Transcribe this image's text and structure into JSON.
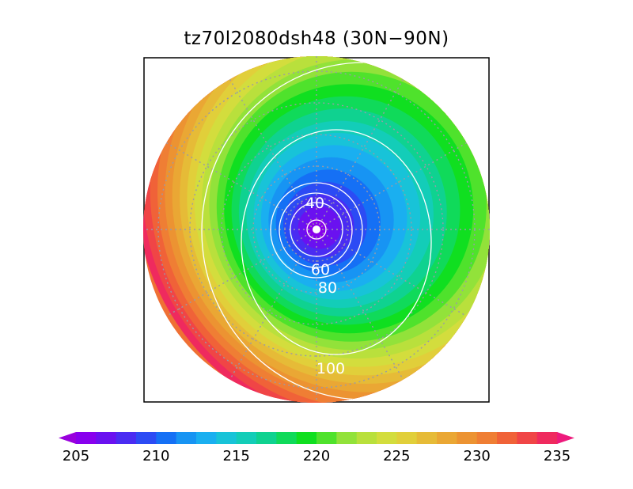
{
  "title": "tz70l2080dsh48 (30N−90N)",
  "map": {
    "projection": "north-polar-stereographic",
    "latitude_range": "30N-90N",
    "variable_shading": "temperature-like field, 205 to 235",
    "contour_lines": [
      {
        "value": 20,
        "label": ""
      },
      {
        "value": 40,
        "label": "40"
      },
      {
        "value": 60,
        "label": "60"
      },
      {
        "value": 80,
        "label": "80"
      },
      {
        "value": 100,
        "label": "100"
      },
      {
        "value": 120,
        "label": ""
      }
    ],
    "gridlines": "dotted gray lat/lon"
  },
  "colorbar": {
    "min": 205,
    "max": 235,
    "step": 1.25,
    "extend": "both",
    "tick_labels": [
      "205",
      "210",
      "215",
      "220",
      "225",
      "230",
      "235"
    ],
    "colors": [
      "#9900dd",
      "#8800ee",
      "#6a11f0",
      "#4a2cf2",
      "#2c4bf4",
      "#1570f5",
      "#1794f3",
      "#1aaff0",
      "#18c3d8",
      "#13cdb8",
      "#0fd290",
      "#10da5a",
      "#10df20",
      "#4fe22c",
      "#92e23a",
      "#b9e03c",
      "#d3dd3d",
      "#e1cf3a",
      "#e6bb37",
      "#eaa734",
      "#ec9332",
      "#ef7e34",
      "#f06238",
      "#f04546",
      "#ef2a5e",
      "#ed1a7c"
    ]
  }
}
